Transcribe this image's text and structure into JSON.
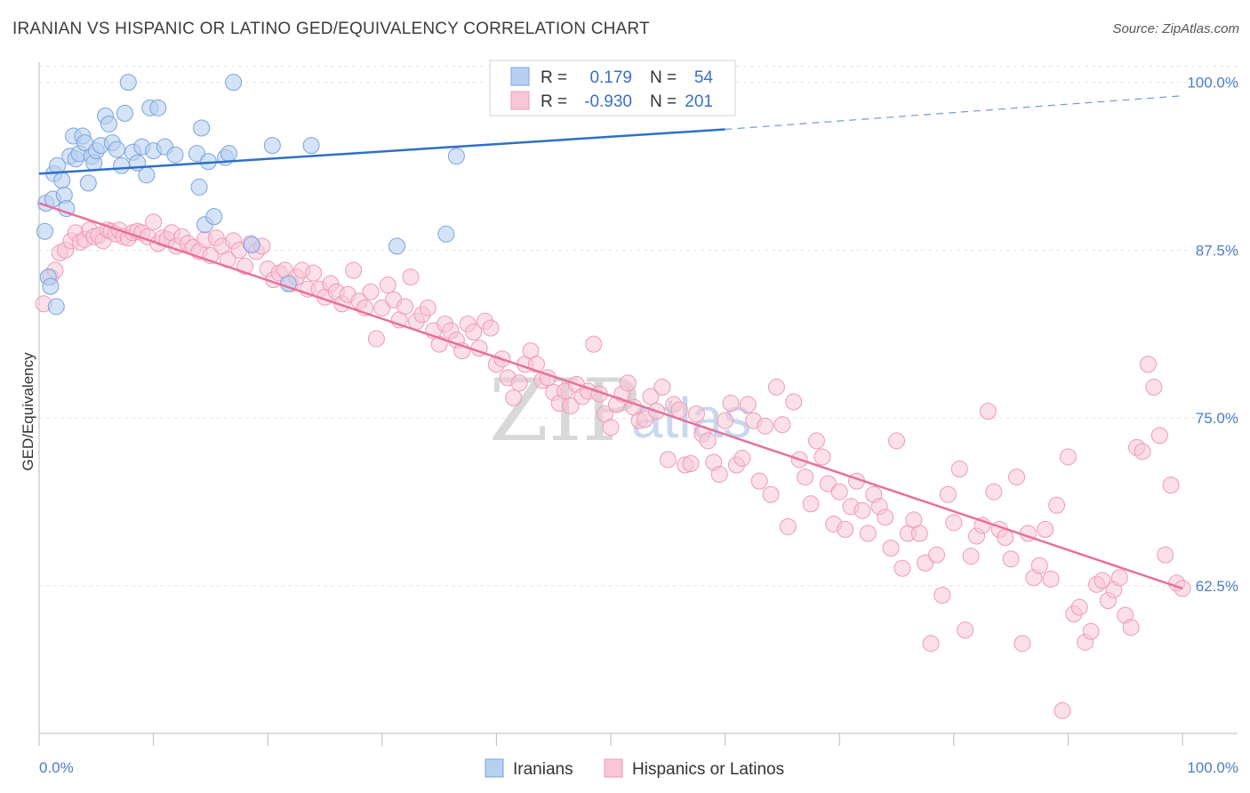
{
  "header": {
    "title": "IRANIAN VS HISPANIC OR LATINO GED/EQUIVALENCY CORRELATION CHART",
    "source": "Source: ZipAtlas.com"
  },
  "watermark": {
    "zip": "ZIP",
    "atlas": "atlas"
  },
  "legend": {
    "iranians": {
      "r_label": "R =",
      "r_value": "0.179",
      "n_label": "N =",
      "n_value": "54"
    },
    "hispanics": {
      "r_label": "R =",
      "r_value": "-0.930",
      "n_label": "N =",
      "n_value": "201"
    }
  },
  "bottom_legend": {
    "iranians": "Iranians",
    "hispanics": "Hispanics or Latinos"
  },
  "colors": {
    "iranians_fill": "#b8d0f0",
    "iranians_stroke": "#7aa3dd",
    "iranians_line": "#2f6fc6",
    "hispanics_fill": "#f8c6d6",
    "hispanics_stroke": "#ee9ab6",
    "hispanics_line": "#e8709b",
    "grid": "#e3e3e3",
    "tick_label": "#4a7cc7"
  },
  "chart_data": {
    "type": "scatter",
    "title": "IRANIAN VS HISPANIC OR LATINO GED/EQUIVALENCY CORRELATION CHART",
    "xlabel": "",
    "ylabel": "GED/Equivalency",
    "x_tick_labels": [
      "0.0%",
      "100.0%"
    ],
    "y_tick_labels": [
      "100.0%",
      "87.5%",
      "75.0%",
      "62.5%"
    ],
    "y_ticks": [
      100.0,
      87.5,
      75.0,
      62.5
    ],
    "xlim": [
      0,
      100
    ],
    "ylim": [
      51.5,
      101.5
    ],
    "grid": true,
    "legend_placement": "top-center",
    "series": [
      {
        "name": "Iranians",
        "r": 0.179,
        "n": 54,
        "trend": {
          "x0": 0,
          "y0": 93.2,
          "x1": 60,
          "y1": 96.5,
          "dashed_to_x": 100,
          "dashed_to_y": 99.0
        },
        "points": [
          [
            0.5,
            88.9
          ],
          [
            0.6,
            91.0
          ],
          [
            0.8,
            85.5
          ],
          [
            1.0,
            84.8
          ],
          [
            1.2,
            91.3
          ],
          [
            1.3,
            93.2
          ],
          [
            1.5,
            83.3
          ],
          [
            1.6,
            93.8
          ],
          [
            2.0,
            92.7
          ],
          [
            2.2,
            91.6
          ],
          [
            2.4,
            90.6
          ],
          [
            2.7,
            94.5
          ],
          [
            3.0,
            96.0
          ],
          [
            3.2,
            94.3
          ],
          [
            3.5,
            94.7
          ],
          [
            3.8,
            96.0
          ],
          [
            4.0,
            95.5
          ],
          [
            4.3,
            92.5
          ],
          [
            4.6,
            94.5
          ],
          [
            4.8,
            94.0
          ],
          [
            5.0,
            94.9
          ],
          [
            5.4,
            95.3
          ],
          [
            5.8,
            97.5
          ],
          [
            6.1,
            96.9
          ],
          [
            6.4,
            95.5
          ],
          [
            6.8,
            95.0
          ],
          [
            7.2,
            93.8
          ],
          [
            7.5,
            97.7
          ],
          [
            7.8,
            100.0
          ],
          [
            8.2,
            94.8
          ],
          [
            8.6,
            94.0
          ],
          [
            9.0,
            95.2
          ],
          [
            9.4,
            93.1
          ],
          [
            9.7,
            98.1
          ],
          [
            10.0,
            94.9
          ],
          [
            10.4,
            98.1
          ],
          [
            11.0,
            95.2
          ],
          [
            11.9,
            94.6
          ],
          [
            13.8,
            94.7
          ],
          [
            14.2,
            96.6
          ],
          [
            14.0,
            92.2
          ],
          [
            14.5,
            89.4
          ],
          [
            14.8,
            94.1
          ],
          [
            15.3,
            90.0
          ],
          [
            16.3,
            94.4
          ],
          [
            16.6,
            94.7
          ],
          [
            17.0,
            100.0
          ],
          [
            18.6,
            87.9
          ],
          [
            20.4,
            95.3
          ],
          [
            21.8,
            85.0
          ],
          [
            23.8,
            95.3
          ],
          [
            31.3,
            87.8
          ],
          [
            35.6,
            88.7
          ],
          [
            36.5,
            94.5
          ]
        ]
      },
      {
        "name": "Hispanics or Latinos",
        "r": -0.93,
        "n": 201,
        "trend": {
          "x0": 0,
          "y0": 91.0,
          "x1": 100,
          "y1": 62.3
        },
        "points": [
          [
            0.4,
            83.5
          ],
          [
            1.0,
            85.5
          ],
          [
            1.4,
            86.0
          ],
          [
            1.8,
            87.3
          ],
          [
            2.3,
            87.5
          ],
          [
            2.8,
            88.2
          ],
          [
            3.2,
            88.8
          ],
          [
            3.6,
            88.1
          ],
          [
            4.0,
            88.3
          ],
          [
            4.4,
            89.0
          ],
          [
            4.8,
            88.5
          ],
          [
            5.2,
            88.6
          ],
          [
            5.6,
            88.2
          ],
          [
            6.0,
            89.0
          ],
          [
            6.3,
            88.9
          ],
          [
            6.7,
            88.7
          ],
          [
            7.0,
            89.0
          ],
          [
            7.4,
            88.5
          ],
          [
            7.8,
            88.4
          ],
          [
            8.2,
            88.8
          ],
          [
            8.6,
            88.9
          ],
          [
            9.0,
            88.8
          ],
          [
            9.5,
            88.5
          ],
          [
            10.0,
            89.6
          ],
          [
            10.4,
            88.0
          ],
          [
            10.8,
            88.4
          ],
          [
            11.2,
            88.3
          ],
          [
            11.6,
            88.8
          ],
          [
            12.0,
            87.8
          ],
          [
            12.5,
            88.5
          ],
          [
            13.0,
            88.0
          ],
          [
            13.5,
            87.7
          ],
          [
            14.0,
            87.4
          ],
          [
            14.5,
            88.3
          ],
          [
            15.0,
            87.1
          ],
          [
            15.5,
            88.4
          ],
          [
            16.0,
            87.8
          ],
          [
            16.5,
            86.8
          ],
          [
            17.0,
            88.2
          ],
          [
            17.5,
            87.5
          ],
          [
            18.0,
            86.3
          ],
          [
            18.5,
            88.0
          ],
          [
            19.0,
            87.4
          ],
          [
            19.5,
            87.8
          ],
          [
            20.0,
            86.1
          ],
          [
            20.5,
            85.3
          ],
          [
            21.0,
            85.8
          ],
          [
            21.5,
            86.0
          ],
          [
            22.0,
            85.0
          ],
          [
            22.5,
            85.5
          ],
          [
            23.0,
            86.0
          ],
          [
            23.5,
            84.6
          ],
          [
            24.0,
            85.8
          ],
          [
            24.5,
            84.6
          ],
          [
            25.0,
            84.0
          ],
          [
            25.5,
            85.0
          ],
          [
            26.0,
            84.4
          ],
          [
            26.5,
            83.5
          ],
          [
            27.0,
            84.2
          ],
          [
            27.5,
            86.0
          ],
          [
            28.0,
            83.7
          ],
          [
            28.5,
            83.2
          ],
          [
            29.0,
            84.4
          ],
          [
            29.5,
            80.9
          ],
          [
            30.0,
            83.2
          ],
          [
            30.5,
            84.9
          ],
          [
            31.0,
            83.8
          ],
          [
            31.5,
            82.3
          ],
          [
            32.0,
            83.3
          ],
          [
            32.5,
            85.5
          ],
          [
            33.0,
            82.2
          ],
          [
            33.5,
            82.7
          ],
          [
            34.0,
            83.2
          ],
          [
            34.5,
            81.5
          ],
          [
            35.0,
            80.5
          ],
          [
            35.5,
            82.0
          ],
          [
            36.0,
            81.5
          ],
          [
            36.5,
            80.8
          ],
          [
            37.0,
            80.0
          ],
          [
            37.5,
            82.0
          ],
          [
            38.0,
            81.4
          ],
          [
            38.5,
            80.2
          ],
          [
            39.0,
            82.2
          ],
          [
            39.5,
            81.7
          ],
          [
            40.0,
            79.0
          ],
          [
            40.5,
            79.4
          ],
          [
            41.0,
            78.0
          ],
          [
            41.5,
            76.5
          ],
          [
            42.0,
            77.6
          ],
          [
            42.5,
            79.0
          ],
          [
            43.0,
            80.0
          ],
          [
            43.5,
            79.0
          ],
          [
            44.0,
            77.8
          ],
          [
            44.5,
            78.0
          ],
          [
            45.0,
            76.9
          ],
          [
            45.5,
            76.1
          ],
          [
            46.0,
            77.0
          ],
          [
            46.5,
            75.9
          ],
          [
            47.0,
            77.5
          ],
          [
            47.5,
            76.6
          ],
          [
            48.0,
            77.0
          ],
          [
            48.5,
            80.5
          ],
          [
            49.0,
            76.8
          ],
          [
            49.5,
            75.3
          ],
          [
            50.0,
            74.3
          ],
          [
            50.5,
            76.0
          ],
          [
            51.0,
            76.8
          ],
          [
            51.5,
            77.6
          ],
          [
            52.0,
            75.8
          ],
          [
            52.5,
            74.8
          ],
          [
            53.0,
            74.9
          ],
          [
            53.5,
            76.6
          ],
          [
            54.0,
            75.5
          ],
          [
            54.5,
            77.3
          ],
          [
            55.0,
            71.9
          ],
          [
            55.5,
            76.0
          ],
          [
            56.0,
            75.6
          ],
          [
            56.5,
            71.5
          ],
          [
            57.0,
            71.6
          ],
          [
            57.5,
            75.3
          ],
          [
            58.0,
            73.8
          ],
          [
            58.5,
            73.3
          ],
          [
            59.0,
            71.7
          ],
          [
            59.5,
            70.8
          ],
          [
            60.0,
            74.8
          ],
          [
            60.5,
            76.1
          ],
          [
            61.0,
            71.5
          ],
          [
            61.5,
            72.0
          ],
          [
            62.0,
            76.0
          ],
          [
            62.5,
            74.8
          ],
          [
            63.0,
            70.3
          ],
          [
            63.5,
            74.4
          ],
          [
            64.0,
            69.3
          ],
          [
            64.5,
            77.3
          ],
          [
            65.0,
            74.5
          ],
          [
            65.5,
            66.9
          ],
          [
            66.0,
            76.2
          ],
          [
            66.5,
            71.9
          ],
          [
            67.0,
            70.6
          ],
          [
            67.5,
            68.6
          ],
          [
            68.0,
            73.3
          ],
          [
            68.5,
            72.1
          ],
          [
            69.0,
            70.1
          ],
          [
            69.5,
            67.1
          ],
          [
            70.0,
            69.5
          ],
          [
            70.5,
            66.7
          ],
          [
            71.0,
            68.4
          ],
          [
            71.5,
            70.3
          ],
          [
            72.0,
            68.1
          ],
          [
            72.5,
            66.4
          ],
          [
            73.0,
            69.3
          ],
          [
            73.5,
            68.4
          ],
          [
            74.0,
            67.6
          ],
          [
            74.5,
            65.3
          ],
          [
            75.0,
            73.3
          ],
          [
            75.5,
            63.8
          ],
          [
            76.0,
            66.4
          ],
          [
            76.5,
            67.4
          ],
          [
            77.0,
            66.4
          ],
          [
            77.5,
            64.2
          ],
          [
            78.0,
            58.2
          ],
          [
            78.5,
            64.8
          ],
          [
            79.0,
            61.8
          ],
          [
            79.5,
            69.3
          ],
          [
            80.0,
            67.2
          ],
          [
            80.5,
            71.2
          ],
          [
            81.0,
            59.2
          ],
          [
            81.5,
            64.7
          ],
          [
            82.0,
            66.2
          ],
          [
            82.5,
            67.0
          ],
          [
            83.0,
            75.5
          ],
          [
            83.5,
            69.5
          ],
          [
            84.0,
            66.7
          ],
          [
            84.5,
            66.1
          ],
          [
            85.0,
            64.5
          ],
          [
            85.5,
            70.6
          ],
          [
            86.0,
            58.2
          ],
          [
            86.5,
            66.4
          ],
          [
            87.0,
            63.1
          ],
          [
            87.5,
            64.0
          ],
          [
            88.0,
            66.7
          ],
          [
            88.5,
            63.0
          ],
          [
            89.0,
            68.5
          ],
          [
            89.5,
            53.2
          ],
          [
            90.0,
            72.1
          ],
          [
            90.5,
            60.4
          ],
          [
            91.0,
            60.9
          ],
          [
            91.5,
            58.3
          ],
          [
            92.0,
            59.1
          ],
          [
            92.5,
            62.6
          ],
          [
            93.0,
            62.9
          ],
          [
            93.5,
            61.4
          ],
          [
            94.0,
            62.2
          ],
          [
            94.5,
            63.1
          ],
          [
            95.0,
            60.3
          ],
          [
            95.5,
            59.4
          ],
          [
            96.0,
            72.8
          ],
          [
            96.5,
            72.5
          ],
          [
            97.0,
            79.0
          ],
          [
            97.5,
            77.3
          ],
          [
            98.0,
            73.7
          ],
          [
            98.5,
            64.8
          ],
          [
            99.0,
            70.0
          ],
          [
            99.5,
            62.7
          ],
          [
            100.0,
            62.3
          ]
        ]
      }
    ]
  }
}
